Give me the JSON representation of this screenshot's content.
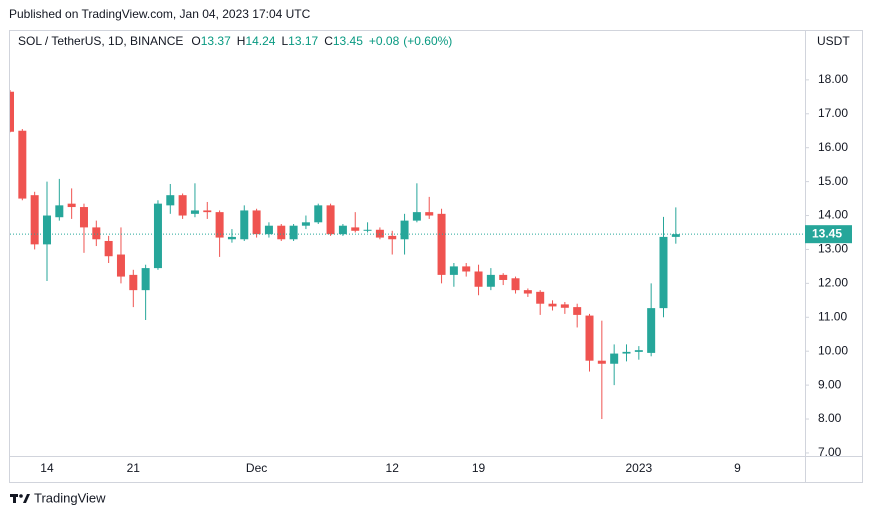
{
  "chart_data": {
    "type": "candlestick",
    "published": "Published on TradingView.com, Jan 04, 2023 17:04 UTC",
    "title": "SOL / TetherUS, 1D, BINANCE",
    "legend": {
      "o": "O",
      "h": "H",
      "l": "L",
      "c": "C",
      "change": "+0.08",
      "change_pct": "(+0.60%)"
    },
    "y_axis_label": "USDT",
    "footer": "TradingView",
    "up_color": "#26a69a",
    "down_color": "#ef5350",
    "last_price_line": true,
    "grid": false,
    "categories": [
      null,
      null,
      null,
      "14",
      null,
      null,
      null,
      null,
      null,
      null,
      "21",
      null,
      null,
      null,
      null,
      null,
      null,
      null,
      null,
      null,
      "Dec",
      null,
      null,
      null,
      null,
      null,
      null,
      null,
      null,
      null,
      null,
      "12",
      null,
      null,
      null,
      null,
      null,
      null,
      "19",
      null,
      null,
      null,
      null,
      null,
      null,
      null,
      null,
      null,
      null,
      null,
      null,
      "2023",
      null,
      null,
      null,
      null,
      null,
      null,
      null,
      "9"
    ],
    "open": [
      17.65,
      16.5,
      14.6,
      13.15,
      13.95,
      14.35,
      14.25,
      13.65,
      13.25,
      12.85,
      12.25,
      11.8,
      12.45,
      14.3,
      14.6,
      14.05,
      14.15,
      14.1,
      13.3,
      13.3,
      14.15,
      13.45,
      13.7,
      13.3,
      13.7,
      13.8,
      14.3,
      13.45,
      13.65,
      13.55,
      13.58,
      13.4,
      13.3,
      13.85,
      14.1,
      14.05,
      12.25,
      12.5,
      12.35,
      11.9,
      12.25,
      12.15,
      11.8,
      11.75,
      11.4,
      11.38,
      11.3,
      11.05,
      9.72,
      9.63,
      9.93,
      9.98,
      9.95,
      11.27,
      13.37,
      null,
      null,
      null,
      null,
      null
    ],
    "high": [
      17.7,
      16.55,
      14.7,
      15.0,
      15.08,
      14.8,
      14.35,
      13.85,
      13.4,
      13.65,
      12.4,
      12.55,
      14.45,
      14.93,
      14.65,
      14.95,
      14.4,
      14.15,
      13.6,
      14.3,
      14.2,
      13.8,
      13.75,
      13.75,
      14.0,
      14.35,
      14.35,
      13.75,
      14.1,
      13.8,
      13.65,
      13.55,
      14.05,
      14.95,
      14.55,
      14.2,
      12.6,
      12.6,
      12.55,
      12.45,
      12.3,
      12.2,
      11.85,
      11.8,
      11.5,
      11.45,
      11.4,
      11.1,
      10.9,
      10.2,
      10.2,
      10.15,
      12.0,
      13.96,
      14.24,
      null,
      null,
      null,
      null,
      null
    ],
    "low": [
      16.45,
      14.45,
      13.0,
      12.07,
      13.85,
      13.9,
      12.9,
      13.1,
      12.6,
      12.0,
      11.3,
      10.92,
      12.4,
      14.05,
      13.9,
      13.95,
      13.9,
      12.78,
      13.2,
      13.25,
      13.35,
      13.35,
      13.25,
      13.25,
      13.6,
      13.75,
      13.4,
      13.4,
      13.5,
      13.5,
      13.3,
      12.85,
      12.85,
      13.8,
      13.9,
      12.0,
      11.9,
      12.2,
      11.65,
      11.8,
      11.95,
      11.7,
      11.6,
      11.07,
      11.2,
      11.1,
      10.7,
      9.4,
      8.0,
      9.0,
      9.7,
      9.75,
      9.85,
      11.0,
      13.17,
      null,
      null,
      null,
      null,
      null
    ],
    "close": [
      16.47,
      14.5,
      13.15,
      14.0,
      14.3,
      14.25,
      13.65,
      13.3,
      12.8,
      12.2,
      11.8,
      12.45,
      14.35,
      14.6,
      14.0,
      14.15,
      14.1,
      13.35,
      13.37,
      14.15,
      13.45,
      13.7,
      13.3,
      13.7,
      13.8,
      14.3,
      13.45,
      13.7,
      13.55,
      13.58,
      13.35,
      13.3,
      13.85,
      14.1,
      14.0,
      12.25,
      12.5,
      12.35,
      11.9,
      12.25,
      12.1,
      11.8,
      11.7,
      11.4,
      11.32,
      11.28,
      11.07,
      9.72,
      9.63,
      9.93,
      9.98,
      10.03,
      11.27,
      13.37,
      13.45,
      null,
      null,
      null,
      null,
      null
    ],
    "ylim": [
      6.91,
      19.47
    ],
    "yticks": [
      {
        "value": 7,
        "label": "7.00"
      },
      {
        "value": 8,
        "label": "8.00"
      },
      {
        "value": 9,
        "label": "9.00"
      },
      {
        "value": 10,
        "label": "10.00"
      },
      {
        "value": 11,
        "label": "11.00"
      },
      {
        "value": 12,
        "label": "12.00"
      },
      {
        "value": 13,
        "label": "13.00"
      },
      {
        "value": 14,
        "label": "14.00"
      },
      {
        "value": 15,
        "label": "15.00"
      },
      {
        "value": 16,
        "label": "16.00"
      },
      {
        "value": 17,
        "label": "17.00"
      },
      {
        "value": 18,
        "label": "18.00"
      }
    ]
  }
}
